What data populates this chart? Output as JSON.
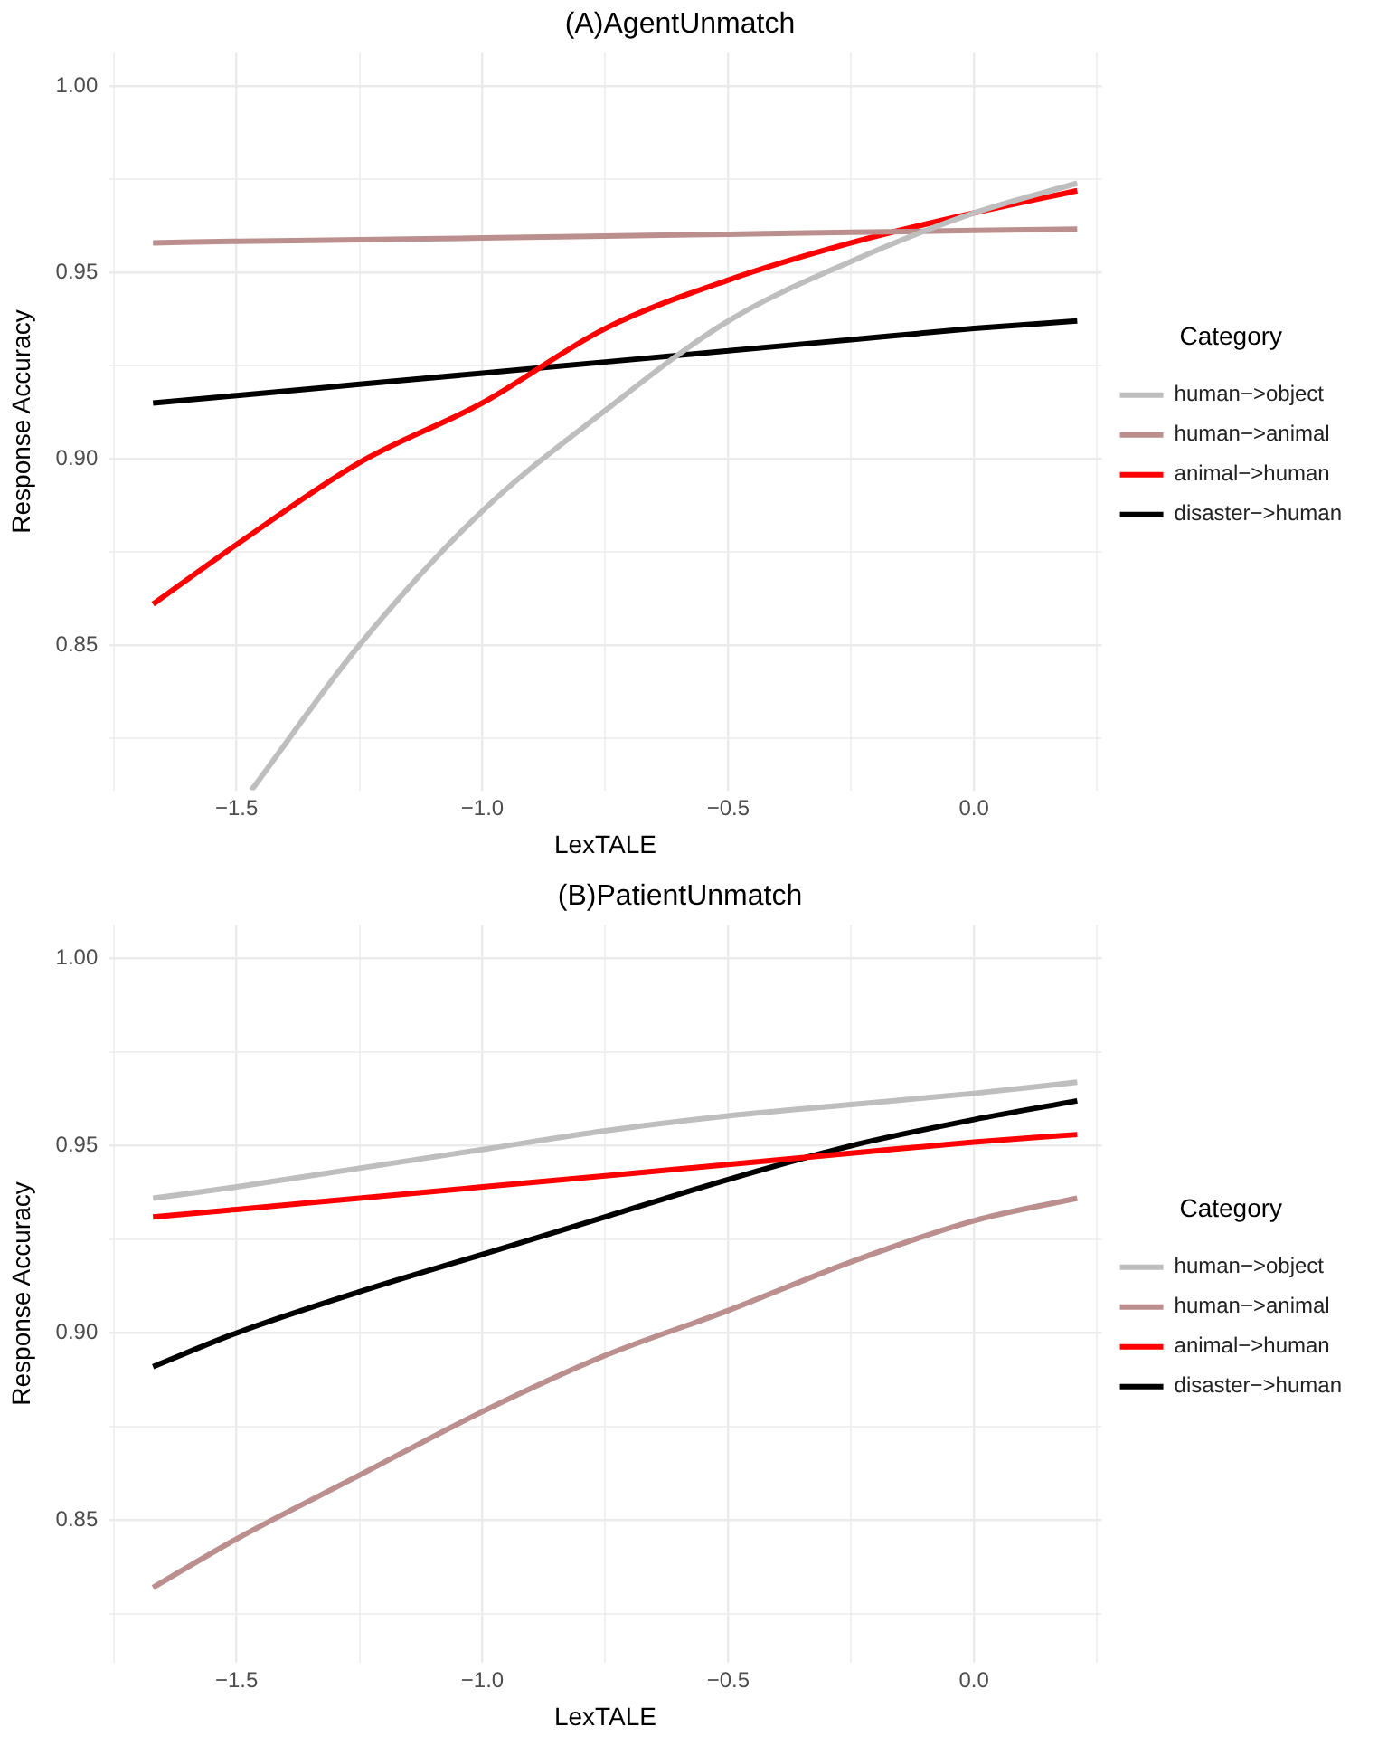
{
  "chart_data": [
    {
      "type": "line",
      "title": "(A)AgentUnmatch",
      "xlabel": "LexTALE",
      "ylabel": "Response Accuracy",
      "legend_title": "Category",
      "legend": "right",
      "grid": true,
      "x": [
        -1.67,
        -1.5,
        -1.25,
        -1.0,
        -0.75,
        -0.5,
        -0.25,
        0.0,
        0.21
      ],
      "xlim": [
        -1.76,
        0.26
      ],
      "xticks": [
        {
          "value": -1.75,
          "label": null
        },
        {
          "value": -1.5,
          "label": "−1.5"
        },
        {
          "value": -1.25,
          "label": null
        },
        {
          "value": -1.0,
          "label": "−1.0"
        },
        {
          "value": -0.75,
          "label": null
        },
        {
          "value": -0.5,
          "label": "−0.5"
        },
        {
          "value": -0.25,
          "label": null
        },
        {
          "value": 0.0,
          "label": "0.0"
        },
        {
          "value": 0.25,
          "label": null
        }
      ],
      "ylim": [
        0.811,
        1.009
      ],
      "yticks": [
        {
          "value": 0.825,
          "label": null
        },
        {
          "value": 0.85,
          "label": "0.85"
        },
        {
          "value": 0.875,
          "label": null
        },
        {
          "value": 0.9,
          "label": "0.90"
        },
        {
          "value": 0.925,
          "label": null
        },
        {
          "value": 0.95,
          "label": "0.95"
        },
        {
          "value": 0.975,
          "label": null
        },
        {
          "value": 1.0,
          "label": "1.00"
        }
      ],
      "series": [
        {
          "name": "human−>object",
          "color": "#bebebe",
          "x": [
            -1.47,
            -1.25,
            -1.0,
            -0.75,
            -0.5,
            -0.25,
            0.0,
            0.21
          ],
          "values": [
            0.811,
            0.85,
            0.886,
            0.913,
            0.937,
            0.953,
            0.966,
            0.974
          ]
        },
        {
          "name": "human−>animal",
          "color": "#bc8f8f",
          "values": [
            0.958,
            0.9584,
            0.9588,
            0.9593,
            0.9598,
            0.9603,
            0.9608,
            0.9613,
            0.9617
          ]
        },
        {
          "name": "animal−>human",
          "color": "#ff0000",
          "values": [
            0.861,
            0.877,
            0.899,
            0.915,
            0.935,
            0.948,
            0.958,
            0.966,
            0.972
          ]
        },
        {
          "name": "disaster−>human",
          "color": "#000000",
          "values": [
            0.915,
            0.917,
            0.92,
            0.923,
            0.926,
            0.929,
            0.932,
            0.935,
            0.937
          ]
        }
      ]
    },
    {
      "type": "line",
      "title": "(B)PatientUnmatch",
      "xlabel": "LexTALE",
      "ylabel": "Response Accuracy",
      "legend_title": "Category",
      "legend": "right",
      "grid": true,
      "x": [
        -1.67,
        -1.5,
        -1.25,
        -1.0,
        -0.75,
        -0.5,
        -0.25,
        0.0,
        0.21
      ],
      "xlim": [
        -1.76,
        0.26
      ],
      "xticks": [
        {
          "value": -1.75,
          "label": null
        },
        {
          "value": -1.5,
          "label": "−1.5"
        },
        {
          "value": -1.25,
          "label": null
        },
        {
          "value": -1.0,
          "label": "−1.0"
        },
        {
          "value": -0.75,
          "label": null
        },
        {
          "value": -0.5,
          "label": "−0.5"
        },
        {
          "value": -0.25,
          "label": null
        },
        {
          "value": 0.0,
          "label": "0.0"
        },
        {
          "value": 0.25,
          "label": null
        }
      ],
      "ylim": [
        0.812,
        1.009
      ],
      "yticks": [
        {
          "value": 0.825,
          "label": null
        },
        {
          "value": 0.85,
          "label": "0.85"
        },
        {
          "value": 0.875,
          "label": null
        },
        {
          "value": 0.9,
          "label": "0.90"
        },
        {
          "value": 0.925,
          "label": null
        },
        {
          "value": 0.95,
          "label": "0.95"
        },
        {
          "value": 0.975,
          "label": null
        },
        {
          "value": 1.0,
          "label": "1.00"
        }
      ],
      "series": [
        {
          "name": "human−>object",
          "color": "#bebebe",
          "values": [
            0.936,
            0.939,
            0.944,
            0.949,
            0.954,
            0.958,
            0.961,
            0.964,
            0.967
          ]
        },
        {
          "name": "human−>animal",
          "color": "#bc8f8f",
          "values": [
            0.832,
            0.845,
            0.862,
            0.879,
            0.894,
            0.906,
            0.919,
            0.93,
            0.936
          ]
        },
        {
          "name": "animal−>human",
          "color": "#ff0000",
          "values": [
            0.931,
            0.933,
            0.936,
            0.939,
            0.942,
            0.945,
            0.948,
            0.951,
            0.953
          ]
        },
        {
          "name": "disaster−>human",
          "color": "#000000",
          "values": [
            0.891,
            0.9,
            0.911,
            0.921,
            0.931,
            0.941,
            0.95,
            0.957,
            0.962
          ]
        }
      ]
    }
  ]
}
